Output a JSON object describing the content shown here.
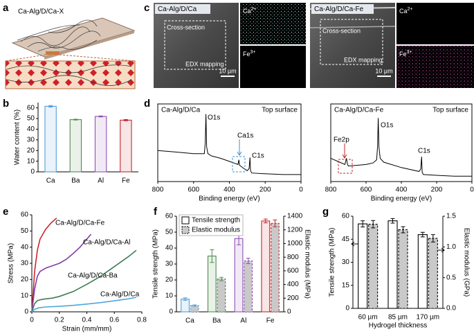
{
  "panel_labels": [
    "a",
    "b",
    "c",
    "d",
    "e",
    "f",
    "g"
  ],
  "panel_a": {
    "title": "Ca-Alg/D/Ca-X"
  },
  "panel_c": {
    "images": [
      {
        "title": "Ca-Alg/D/Ca",
        "color": "#3f8fd2",
        "box_labels": [
          "Cross-section",
          "EDX mapping"
        ],
        "scale_bar": "10 µm",
        "maps": [
          {
            "element": "Ca",
            "charge": "2+"
          },
          {
            "element": "Fe",
            "charge": "3+"
          }
        ]
      },
      {
        "title": "Ca-Alg/D/Ca-Fe",
        "color": "#c8262c",
        "box_labels": [
          "Cross-section",
          "EDX mapping"
        ],
        "scale_bar": "10 µm",
        "maps": [
          {
            "element": "Ca",
            "charge": "2+"
          },
          {
            "element": "Fe",
            "charge": "3+"
          }
        ]
      }
    ]
  },
  "chart_data": [
    {
      "type": "bar",
      "ylabel": "Water content (%)",
      "categories": [
        "Ca",
        "Ba",
        "Al",
        "Fe"
      ],
      "values": [
        61.5,
        49,
        52,
        48.5
      ],
      "errors": [
        0.7,
        0.4,
        0.5,
        0.6
      ],
      "colors": [
        "#4f9fdb",
        "#4e8a4e",
        "#8e52b4",
        "#c8262c"
      ],
      "ylim": [
        0,
        65
      ],
      "yticks": [
        0,
        10,
        20,
        30,
        40,
        50,
        60
      ]
    },
    {
      "type": "line",
      "title": "Ca-Alg/D/Ca",
      "title_color": "#3f8fd2",
      "subtitle": "Top surface",
      "xlabel": "Binding energy (eV)",
      "x": [
        800,
        700,
        600,
        560,
        540,
        535,
        531,
        527,
        520,
        500,
        450,
        400,
        365,
        352,
        347,
        343,
        320,
        300,
        290,
        285,
        282,
        275,
        200,
        100,
        0
      ],
      "values": [
        40,
        38,
        36,
        36,
        36,
        50,
        87,
        45,
        36,
        33,
        30,
        26,
        23,
        22,
        28,
        21,
        17,
        14,
        17,
        31,
        14,
        11,
        10,
        9,
        9
      ],
      "color": "#000000",
      "xlim": [
        800,
        0
      ],
      "xticks": [
        800,
        600,
        400,
        200,
        0
      ],
      "ylim": [
        0,
        100
      ],
      "annotations": [
        {
          "text": "O1s"
        },
        {
          "text": "Ca1s",
          "color": "#3f8fd2"
        },
        {
          "text": "C1s"
        }
      ]
    },
    {
      "type": "line",
      "title": "Ca-Alg/D/Ca-Fe",
      "title_color": "#c8262c",
      "subtitle": "Top surface",
      "xlabel": "Binding energy (eV)",
      "x": [
        800,
        750,
        720,
        711,
        705,
        700,
        600,
        560,
        540,
        535,
        531,
        527,
        520,
        500,
        400,
        300,
        290,
        285,
        282,
        275,
        200,
        100,
        0
      ],
      "values": [
        30,
        25,
        22,
        30,
        22,
        20,
        22,
        24,
        28,
        45,
        82,
        45,
        30,
        25,
        18,
        13,
        16,
        32,
        12,
        9,
        8,
        7,
        7
      ],
      "color": "#000000",
      "xlim": [
        800,
        0
      ],
      "xticks": [
        800,
        600,
        400,
        200,
        0
      ],
      "ylim": [
        0,
        100
      ],
      "annotations": [
        {
          "text": "O1s"
        },
        {
          "text": "Fe2p",
          "color": "#c8262c"
        },
        {
          "text": "C1s"
        }
      ]
    },
    {
      "type": "line",
      "xlabel": "Strain (mm/mm)",
      "ylabel": "Stress (MPa)",
      "xlim": [
        0,
        0.8
      ],
      "xticks": [
        0,
        0.2,
        0.4,
        0.6,
        0.8
      ],
      "ylim": [
        0,
        60
      ],
      "yticks": [
        0,
        10,
        20,
        30,
        40,
        50,
        60
      ],
      "series": [
        {
          "name": "Ca-Alg/D/Ca-Fe",
          "color": "#c8262c",
          "x": [
            0,
            0.01,
            0.02,
            0.04,
            0.06,
            0.1,
            0.14,
            0.18
          ],
          "values": [
            0,
            12,
            25,
            38,
            45,
            51,
            55,
            58
          ]
        },
        {
          "name": "Ca-Alg/D/Ca-Al",
          "color": "#7e3fa6",
          "x": [
            0,
            0.02,
            0.04,
            0.06,
            0.1,
            0.15,
            0.2,
            0.25,
            0.3,
            0.35,
            0.4,
            0.43
          ],
          "values": [
            0,
            14,
            22,
            25,
            27,
            28.5,
            30,
            32.5,
            36,
            40,
            45,
            48
          ]
        },
        {
          "name": "Ca-Alg/D/Ca-Ba",
          "color": "#3f7a55",
          "x": [
            0,
            0.02,
            0.04,
            0.08,
            0.15,
            0.2,
            0.3,
            0.4,
            0.5,
            0.6,
            0.7,
            0.76
          ],
          "values": [
            0,
            5,
            7,
            7.8,
            8.5,
            9.5,
            12.5,
            17,
            22,
            28,
            34,
            38
          ]
        },
        {
          "name": "Ca-Alg/D/Ca",
          "color": "#4fa6dc",
          "x": [
            0,
            0.02,
            0.05,
            0.1,
            0.2,
            0.3,
            0.4,
            0.5,
            0.6,
            0.7,
            0.76
          ],
          "values": [
            0,
            1.5,
            2.5,
            3,
            3.4,
            4,
            4.8,
            5.7,
            6.8,
            8,
            9
          ]
        }
      ]
    },
    {
      "type": "bar",
      "categories": [
        "Ca",
        "Ba",
        "Al",
        "Fe"
      ],
      "category_colors": [
        "#4f9fdb",
        "#4e8a4e",
        "#8e52b4",
        "#c8262c"
      ],
      "ylabel": "Tensile strength (MPa)",
      "y2label": "Elastic modulus (MPa)",
      "ylim": [
        0,
        60
      ],
      "yticks": [
        0,
        10,
        20,
        30,
        40,
        50,
        60
      ],
      "y2lim": [
        0,
        1400
      ],
      "y2ticks": [
        0,
        200,
        400,
        600,
        800,
        1000,
        1200,
        1400
      ],
      "series": [
        {
          "name": "Tensile strength",
          "values": [
            8,
            35,
            46,
            57
          ],
          "errors": [
            0.8,
            4,
            4,
            1.2
          ]
        },
        {
          "name": "Elastic modulus",
          "axis": "y2",
          "values": [
            92,
            480,
            745,
            1295
          ],
          "errors": [
            10,
            25,
            40,
            50
          ]
        }
      ]
    },
    {
      "type": "bar",
      "categories": [
        "60 µm",
        "85 µm",
        "170 µm"
      ],
      "xlabel": "Hydrogel thickness",
      "ylabel": "Tensile strength (MPa)",
      "y2label": "Elastic modulus (GPa)",
      "ylim": [
        0,
        60
      ],
      "yticks": [
        0,
        15,
        30,
        45,
        60
      ],
      "y2lim": [
        0,
        1.5
      ],
      "y2ticks": [
        {
          "value": 0,
          "label": "0.0"
        },
        0.5,
        {
          "value": 1,
          "label": "1.0"
        },
        1.5
      ],
      "series": [
        {
          "values": [
            55,
            57,
            48
          ],
          "errors": [
            2,
            1.5,
            1.5
          ]
        },
        {
          "axis": "y2",
          "values": [
            1.37,
            1.28,
            1.14
          ],
          "errors": [
            0.06,
            0.05,
            0.06
          ]
        }
      ]
    }
  ]
}
